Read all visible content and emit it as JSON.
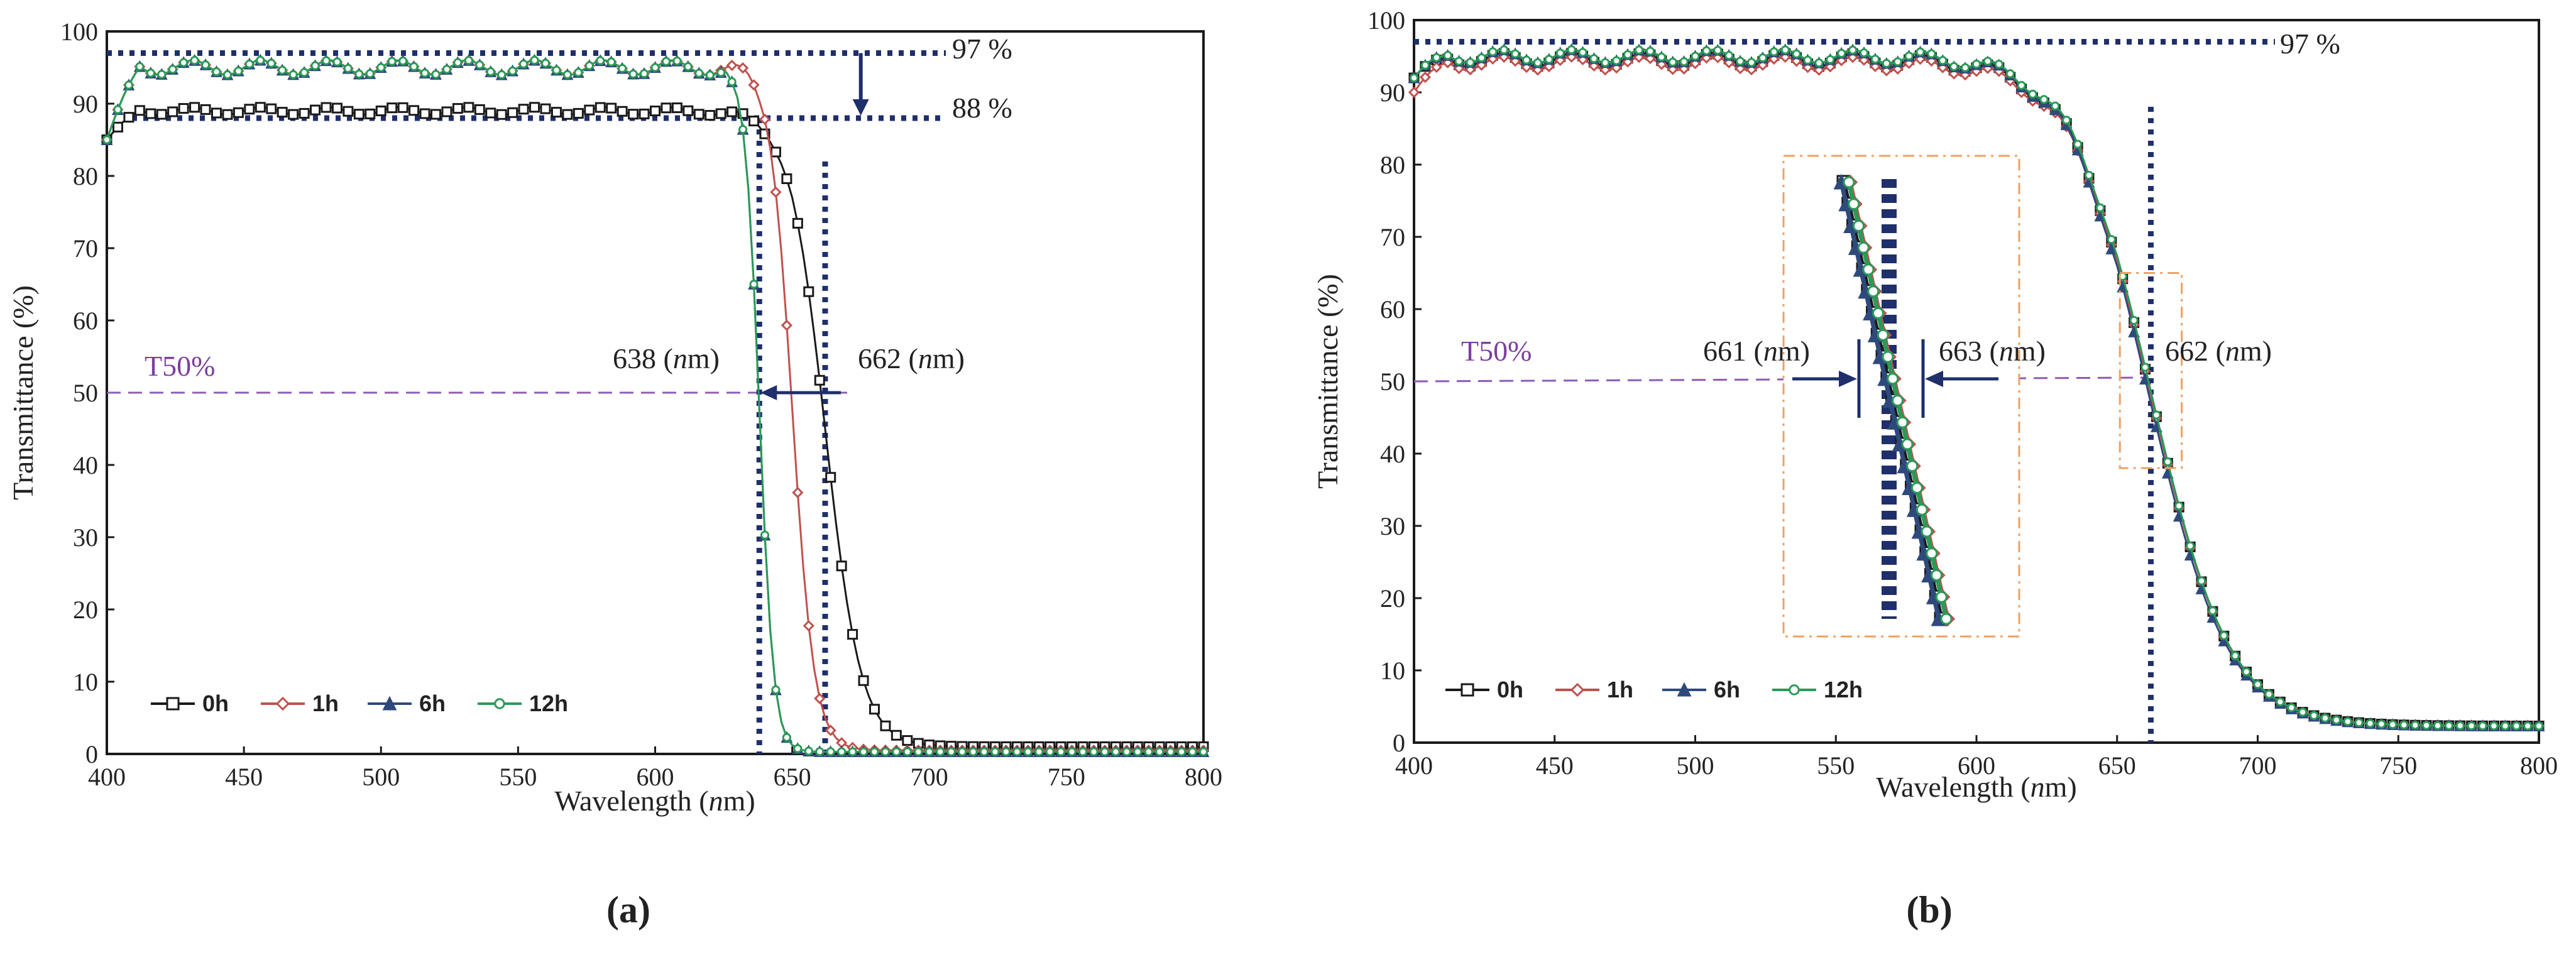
{
  "chart_data": [
    {
      "type": "line",
      "panel": "(a)",
      "xlabel": "Wavelength (nm)",
      "ylabel": "Transmittance (%)",
      "xlim": [
        400,
        800
      ],
      "ylim": [
        0,
        100
      ],
      "xticks": [
        400,
        450,
        500,
        550,
        600,
        650,
        700,
        750,
        800
      ],
      "yticks": [
        0,
        10,
        20,
        30,
        40,
        50,
        60,
        70,
        80,
        90,
        100
      ],
      "grid": false,
      "legend_position": "bottom-left",
      "series": [
        {
          "name": "0h",
          "color": "#1a1a1a",
          "marker": "square",
          "plateau": 89,
          "start": 85,
          "cutoff": 662,
          "steepness": 6.5,
          "floor": 1.0
        },
        {
          "name": "1h",
          "color": "#c0504d",
          "marker": "diamond",
          "plateau": 95,
          "start": 85,
          "cutoff": 650,
          "steepness": 4.0,
          "floor": 0.5
        },
        {
          "name": "6h",
          "color": "#2e4a7d",
          "marker": "triangle",
          "plateau": 95,
          "start": 85,
          "cutoff": 638,
          "steepness": 2.6,
          "floor": 0.3
        },
        {
          "name": "12h",
          "color": "#2a9a56",
          "marker": "circle",
          "plateau": 95,
          "start": 85,
          "cutoff": 638,
          "steepness": 2.6,
          "floor": 0.3
        }
      ],
      "annotations": {
        "top_level": "97 %",
        "drop_level": "88 %",
        "t50": "T50%",
        "cut_left": "638 (nm)",
        "cut_right": "662 (nm)"
      },
      "reference_values": {
        "top_level": 97,
        "drop_level": 88,
        "t50": 50,
        "cut_left": 638,
        "cut_right": 662
      }
    },
    {
      "type": "line",
      "panel": "(b)",
      "xlabel": "Wavelength (nm)",
      "ylabel": "Transmittance (%)",
      "xlim": [
        400,
        800
      ],
      "ylim": [
        0,
        100
      ],
      "xticks": [
        400,
        450,
        500,
        550,
        600,
        650,
        700,
        750,
        800
      ],
      "yticks": [
        0,
        10,
        20,
        30,
        40,
        50,
        60,
        70,
        80,
        90,
        100
      ],
      "grid": false,
      "legend_position": "bottom-left",
      "series": [
        {
          "name": "0h",
          "color": "#1a1a1a",
          "marker": "square",
          "plateau": 94.5,
          "start": 92,
          "cutoff": 662,
          "steepness": 14,
          "floor": 2.3
        },
        {
          "name": "1h",
          "color": "#c0504d",
          "marker": "diamond",
          "plateau": 94,
          "start": 90,
          "cutoff": 662,
          "steepness": 14,
          "floor": 2.3
        },
        {
          "name": "6h",
          "color": "#2e4a7d",
          "marker": "triangle",
          "plateau": 95,
          "start": 92,
          "cutoff": 661,
          "steepness": 14,
          "floor": 2.3
        },
        {
          "name": "12h",
          "color": "#2a9a56",
          "marker": "circle",
          "plateau": 95,
          "start": 92,
          "cutoff": 662,
          "steepness": 14,
          "floor": 2.3
        }
      ],
      "annotations": {
        "top_level": "97 %",
        "t50": "T50%",
        "inset_left": "661 (nm)",
        "inset_right": "663 (nm)",
        "cut_main": "662 (nm)"
      },
      "reference_values": {
        "top_level": 97,
        "t50": 50,
        "inset_left": 661,
        "inset_right": 663,
        "cut_main": 662
      }
    }
  ],
  "labels": {
    "panel_a": "(a)",
    "panel_b": "(b)",
    "xlabel_prefix": "Wavelength (",
    "xlabel_unit": "n",
    "xlabel_suffix": "m)",
    "ylabel": "Transmittance (%)",
    "a_top_level": "97 %",
    "a_drop_level": "88 %",
    "a_t50": "T50%",
    "a_cut_left_num": "638 (",
    "a_cut_right_num": "662 (",
    "b_top_level": "97 %",
    "b_t50": "T50%",
    "b_inset_left_num": "661 (",
    "b_inset_right_num": "663 (",
    "b_cut_main_num": "662 (",
    "unit_n": "n",
    "unit_close": "m)"
  },
  "colors": {
    "axis": "#1a1a1a",
    "dotted_ref": "#1f2f6b",
    "t50_line": "#8e5bb5",
    "inset_box": "#f0a060",
    "arrow": "#1f2f6b"
  }
}
